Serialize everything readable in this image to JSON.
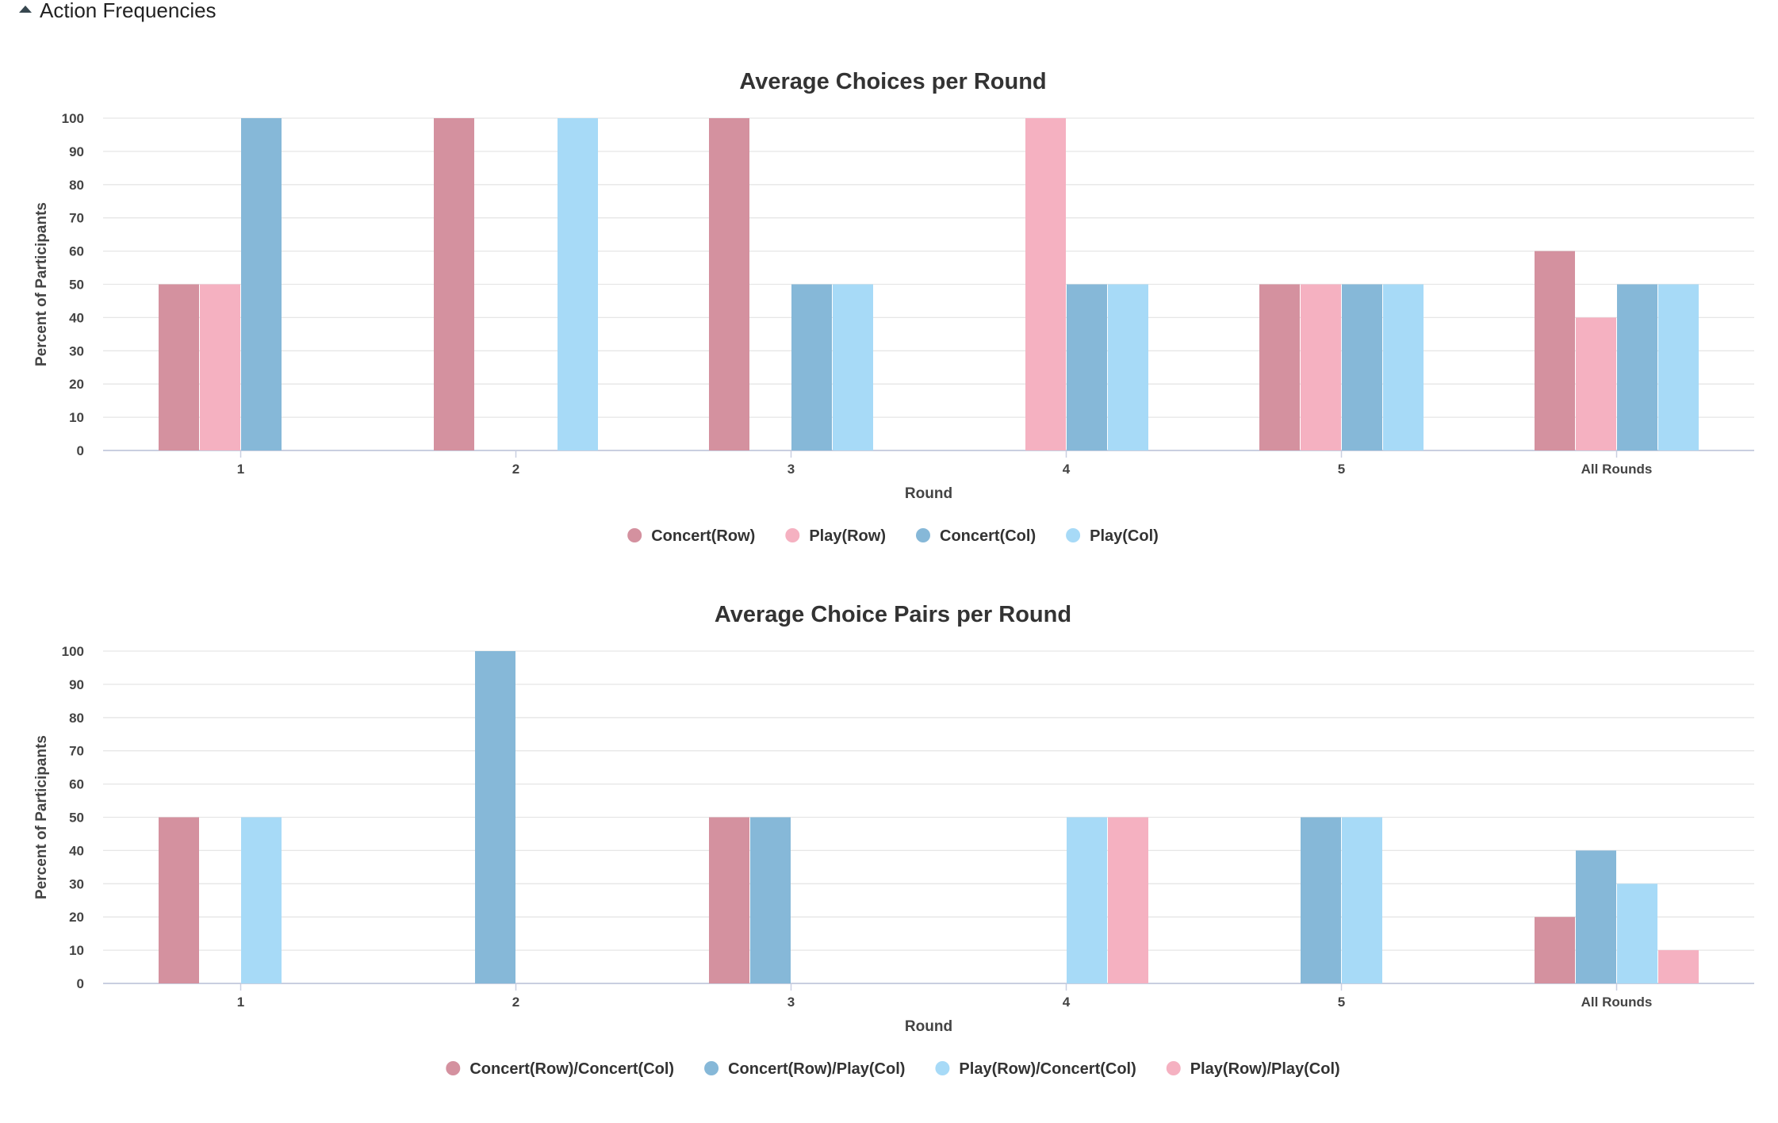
{
  "section": {
    "title": "Action Frequencies"
  },
  "chart_data": [
    {
      "type": "bar",
      "title": "Average Choices per Round",
      "xlabel": "Round",
      "ylabel": "Percent of Participants",
      "ylim": [
        0,
        100
      ],
      "yticks": [
        0,
        10,
        20,
        30,
        40,
        50,
        60,
        70,
        80,
        90,
        100
      ],
      "categories": [
        "1",
        "2",
        "3",
        "4",
        "5",
        "All Rounds"
      ],
      "grid": true,
      "legend_position": "bottom",
      "series": [
        {
          "name": "Concert(Row)",
          "color": "#d4919f",
          "values": [
            50,
            100,
            100,
            0,
            50,
            60
          ]
        },
        {
          "name": "Play(Row)",
          "color": "#f5b1c1",
          "values": [
            50,
            0,
            0,
            100,
            50,
            40
          ]
        },
        {
          "name": "Concert(Col)",
          "color": "#86b8d8",
          "values": [
            100,
            0,
            50,
            50,
            50,
            50
          ]
        },
        {
          "name": "Play(Col)",
          "color": "#a7daf7",
          "values": [
            0,
            100,
            50,
            50,
            50,
            50
          ]
        }
      ]
    },
    {
      "type": "bar",
      "title": "Average Choice Pairs per Round",
      "xlabel": "Round",
      "ylabel": "Percent of Participants",
      "ylim": [
        0,
        100
      ],
      "yticks": [
        0,
        10,
        20,
        30,
        40,
        50,
        60,
        70,
        80,
        90,
        100
      ],
      "categories": [
        "1",
        "2",
        "3",
        "4",
        "5",
        "All Rounds"
      ],
      "grid": true,
      "legend_position": "bottom",
      "series": [
        {
          "name": "Concert(Row)/Concert(Col)",
          "color": "#d4919f",
          "values": [
            50,
            0,
            50,
            0,
            0,
            20
          ]
        },
        {
          "name": "Concert(Row)/Play(Col)",
          "color": "#86b8d8",
          "values": [
            0,
            100,
            50,
            0,
            50,
            40
          ]
        },
        {
          "name": "Play(Row)/Concert(Col)",
          "color": "#a7daf7",
          "values": [
            50,
            0,
            0,
            50,
            50,
            30
          ]
        },
        {
          "name": "Play(Row)/Play(Col)",
          "color": "#f5b1c1",
          "values": [
            0,
            0,
            0,
            50,
            0,
            10
          ]
        }
      ]
    }
  ]
}
